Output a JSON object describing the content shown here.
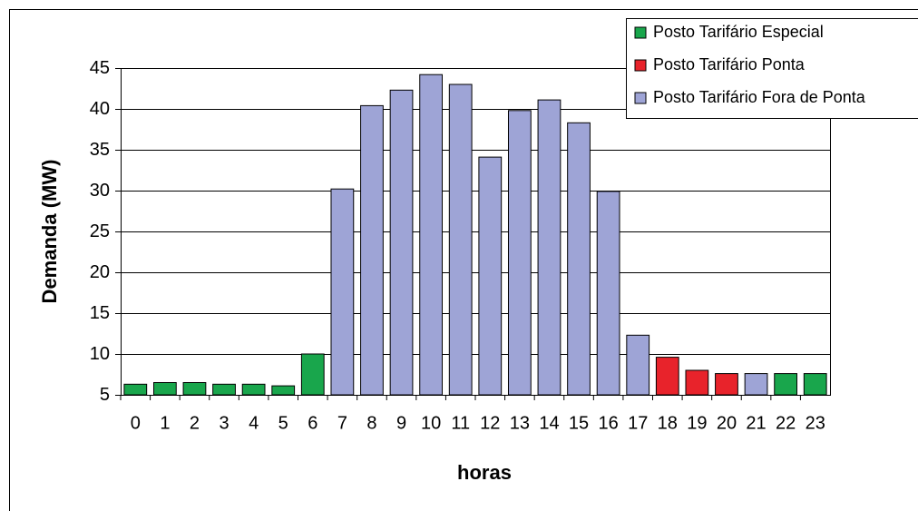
{
  "chart_data": {
    "type": "bar",
    "x_label": "horas",
    "y_label": "Demanda (MW)",
    "categories": [
      "0",
      "1",
      "2",
      "3",
      "4",
      "5",
      "6",
      "7",
      "8",
      "9",
      "10",
      "11",
      "12",
      "13",
      "14",
      "15",
      "16",
      "17",
      "18",
      "19",
      "20",
      "21",
      "22",
      "23"
    ],
    "series": [
      {
        "name": "Posto Tarifário Especial",
        "color": "#19a64c",
        "values": [
          6.3,
          6.5,
          6.5,
          6.3,
          6.3,
          6.1,
          10,
          null,
          null,
          null,
          null,
          null,
          null,
          null,
          null,
          null,
          null,
          null,
          null,
          null,
          null,
          null,
          7.6,
          7.6
        ]
      },
      {
        "name": "Posto Tarifário Ponta",
        "color": "#e8232b",
        "values": [
          null,
          null,
          null,
          null,
          null,
          null,
          null,
          null,
          null,
          null,
          null,
          null,
          null,
          null,
          null,
          null,
          null,
          null,
          9.6,
          8,
          7.6,
          null,
          null,
          null
        ]
      },
      {
        "name": "Posto Tarifário Fora de Ponta",
        "color": "#9ea4d6",
        "values": [
          null,
          null,
          null,
          null,
          null,
          null,
          null,
          30.2,
          40.4,
          42.3,
          44.2,
          43,
          34.1,
          39.8,
          41.1,
          38.3,
          29.9,
          12.3,
          null,
          null,
          null,
          7.6,
          null,
          null
        ]
      }
    ],
    "ylim": [
      5,
      45
    ],
    "yticks": [
      5,
      10,
      15,
      20,
      25,
      30,
      35,
      40,
      45
    ],
    "grid": true,
    "legend": "top-right"
  }
}
